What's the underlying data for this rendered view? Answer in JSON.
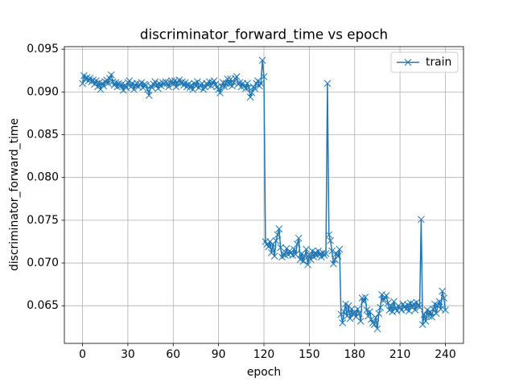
{
  "chart_data": {
    "type": "line",
    "title": "discriminator_forward_time vs epoch",
    "x_label": "epoch",
    "y_label": "discriminator_forward_time",
    "x": [
      0,
      1,
      2,
      3,
      4,
      5,
      6,
      7,
      8,
      9,
      10,
      11,
      12,
      13,
      14,
      15,
      16,
      17,
      18,
      19,
      20,
      21,
      22,
      23,
      24,
      25,
      26,
      27,
      28,
      29,
      30,
      31,
      32,
      33,
      34,
      35,
      36,
      37,
      38,
      39,
      40,
      41,
      42,
      43,
      44,
      45,
      46,
      47,
      48,
      49,
      50,
      51,
      52,
      53,
      54,
      55,
      56,
      57,
      58,
      59,
      60,
      61,
      62,
      63,
      64,
      65,
      66,
      67,
      68,
      69,
      70,
      71,
      72,
      73,
      74,
      75,
      76,
      77,
      78,
      79,
      80,
      81,
      82,
      83,
      84,
      85,
      86,
      87,
      88,
      89,
      90,
      91,
      92,
      93,
      94,
      95,
      96,
      97,
      98,
      99,
      100,
      101,
      102,
      103,
      104,
      105,
      106,
      107,
      108,
      109,
      110,
      111,
      112,
      113,
      114,
      115,
      116,
      117,
      118,
      119,
      120,
      121,
      122,
      123,
      124,
      125,
      126,
      127,
      128,
      129,
      130,
      131,
      132,
      133,
      134,
      135,
      136,
      137,
      138,
      139,
      140,
      141,
      142,
      143,
      144,
      145,
      146,
      147,
      148,
      149,
      150,
      151,
      152,
      153,
      154,
      155,
      156,
      157,
      158,
      159,
      160,
      161,
      162,
      163,
      164,
      165,
      166,
      167,
      168,
      169,
      170,
      171,
      172,
      173,
      174,
      175,
      176,
      177,
      178,
      179,
      180,
      181,
      182,
      183,
      184,
      185,
      186,
      187,
      188,
      189,
      190,
      191,
      192,
      193,
      194,
      195,
      196,
      197,
      198,
      199,
      200,
      201,
      202,
      203,
      204,
      205,
      206,
      207,
      208,
      209,
      210,
      211,
      212,
      213,
      214,
      215,
      216,
      217,
      218,
      219,
      220,
      221,
      222,
      223,
      224,
      225,
      226,
      227,
      228,
      229,
      230,
      231,
      232,
      233,
      234,
      235,
      236,
      237,
      238,
      239,
      240
    ],
    "series": [
      {
        "name": "train",
        "color": "#1f77b4",
        "marker": "x",
        "values": [
          0.091,
          0.0919,
          0.0915,
          0.0917,
          0.0913,
          0.0916,
          0.0912,
          0.0914,
          0.0909,
          0.0913,
          0.0906,
          0.0911,
          0.0903,
          0.091,
          0.0907,
          0.0912,
          0.0914,
          0.091,
          0.0916,
          0.092,
          0.0912,
          0.0908,
          0.0911,
          0.0906,
          0.091,
          0.0907,
          0.0909,
          0.0902,
          0.0908,
          0.0905,
          0.0911,
          0.0913,
          0.0906,
          0.091,
          0.0903,
          0.0908,
          0.091,
          0.0906,
          0.0909,
          0.0911,
          0.0905,
          0.0909,
          0.0908,
          0.0903,
          0.0896,
          0.0907,
          0.0905,
          0.0909,
          0.0912,
          0.0908,
          0.0904,
          0.091,
          0.0907,
          0.0911,
          0.0909,
          0.0912,
          0.091,
          0.0906,
          0.0911,
          0.0913,
          0.0909,
          0.0913,
          0.0906,
          0.0911,
          0.0914,
          0.091,
          0.0912,
          0.0908,
          0.0911,
          0.0906,
          0.0909,
          0.0905,
          0.0908,
          0.0903,
          0.091,
          0.0907,
          0.0912,
          0.0905,
          0.0908,
          0.091,
          0.0903,
          0.0906,
          0.091,
          0.0908,
          0.0912,
          0.0907,
          0.0911,
          0.0913,
          0.0909,
          0.0906,
          0.0903,
          0.0899,
          0.0907,
          0.0911,
          0.0906,
          0.091,
          0.0915,
          0.0909,
          0.0915,
          0.0907,
          0.0911,
          0.0916,
          0.0918,
          0.0909,
          0.0911,
          0.0906,
          0.091,
          0.0907,
          0.0904,
          0.091,
          0.0905,
          0.0894,
          0.0899,
          0.0906,
          0.0904,
          0.091,
          0.0913,
          0.0907,
          0.091,
          0.0937,
          0.0918,
          0.0725,
          0.0722,
          0.0719,
          0.0725,
          0.0712,
          0.0722,
          0.0708,
          0.0726,
          0.0733,
          0.074,
          0.0718,
          0.0707,
          0.0711,
          0.0709,
          0.0717,
          0.071,
          0.0714,
          0.0712,
          0.0709,
          0.0716,
          0.071,
          0.0722,
          0.0729,
          0.0704,
          0.0711,
          0.0702,
          0.0708,
          0.0716,
          0.0698,
          0.071,
          0.0704,
          0.0714,
          0.0707,
          0.0712,
          0.0709,
          0.0714,
          0.071,
          0.0707,
          0.0712,
          0.0709,
          0.0711,
          0.091,
          0.0733,
          0.0726,
          0.0714,
          0.0699,
          0.0704,
          0.0711,
          0.0708,
          0.0716,
          0.064,
          0.063,
          0.0643,
          0.0652,
          0.0638,
          0.065,
          0.0635,
          0.0646,
          0.064,
          0.0643,
          0.0637,
          0.0646,
          0.0641,
          0.0632,
          0.0659,
          0.0655,
          0.066,
          0.0645,
          0.0638,
          0.0643,
          0.0634,
          0.063,
          0.0628,
          0.0636,
          0.0623,
          0.0641,
          0.0648,
          0.0663,
          0.0656,
          0.066,
          0.0662,
          0.0653,
          0.0645,
          0.065,
          0.0643,
          0.0655,
          0.0647,
          0.0644,
          0.065,
          0.0648,
          0.0645,
          0.0652,
          0.0649,
          0.0646,
          0.0651,
          0.0644,
          0.0653,
          0.0648,
          0.0652,
          0.0645,
          0.0654,
          0.065,
          0.0648,
          0.0751,
          0.0628,
          0.064,
          0.0632,
          0.0645,
          0.0638,
          0.0643,
          0.0637,
          0.0646,
          0.0652,
          0.0641,
          0.065,
          0.0655,
          0.0646,
          0.0667,
          0.0659,
          0.0645
        ]
      }
    ],
    "xlim": [
      -12,
      252
    ],
    "xticks": [
      0,
      30,
      60,
      90,
      120,
      150,
      180,
      210,
      240
    ],
    "ylim": [
      0.0606,
      0.0953
    ],
    "yticks": [
      0.065,
      {
        "value": 0.07,
        "label": "0.070"
      },
      0.075,
      {
        "value": 0.08,
        "label": "0.080"
      },
      0.085,
      {
        "value": 0.09,
        "label": "0.090"
      },
      0.095
    ],
    "grid": true,
    "legend": "upper right"
  }
}
